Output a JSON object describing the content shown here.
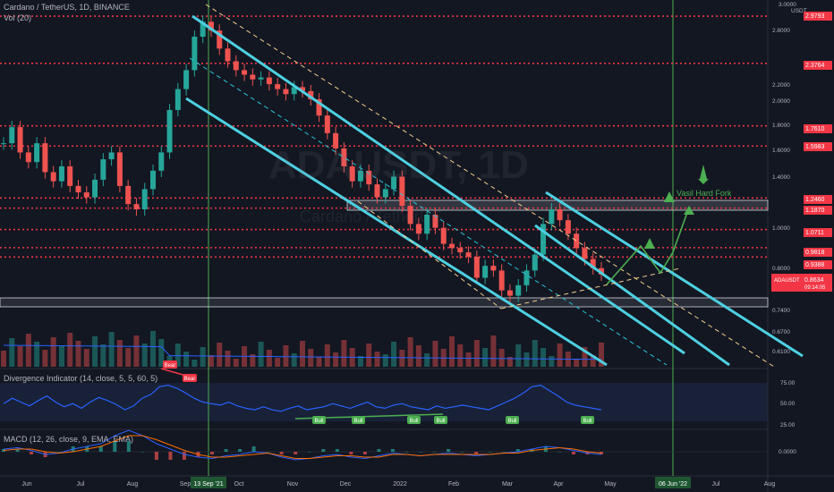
{
  "header": {
    "symbol_line": "Cardano / TetherUS, 1D, BINANCE",
    "volume_label": "Vol (20)",
    "watermark_ticker": "ADAUSDT, 1D",
    "watermark_name": "Cardano / TetherUS"
  },
  "indicators": {
    "divergence_label": "Divergence Indicator (14, close, 5, 5, 60, 5)",
    "macd_label": "MACD (12, 26, close, 9, EMA, EMA)"
  },
  "annotations": {
    "vasil": "Vasil Hard Fork"
  },
  "colors": {
    "background": "#131722",
    "channel": "#4dd0e1",
    "resistance": "#f23645",
    "annotation_green": "#4caf50",
    "rsi_line": "#2962ff",
    "macd_line": "#2962ff",
    "signal_line": "#ff6d00",
    "dashed_upper": "#f5d08a",
    "dashed_lower": "#26c6da"
  },
  "chart_data": {
    "type": "line",
    "price_axis": {
      "scale": "log",
      "unit_label": "USDT",
      "ticks": [
        "3.0000",
        "2.8000",
        "2.2000",
        "2.0000",
        "1.8000",
        "1.6000",
        "1.4000",
        "1.0000",
        "0.8000",
        "0.7400",
        "0.6700",
        "0.6100"
      ]
    },
    "price_labels": [
      {
        "value": "2.9793",
        "color": "#f23645"
      },
      {
        "value": "2.3764",
        "color": "#f23645"
      },
      {
        "value": "1.7610",
        "color": "#f23645"
      },
      {
        "value": "1.5983",
        "color": "#f23645"
      },
      {
        "value": "1.2460",
        "color": "#f23645"
      },
      {
        "value": "1.1870",
        "color": "#f23645"
      },
      {
        "value": "1.0711",
        "color": "#f23645"
      },
      {
        "value": "0.9818",
        "color": "#f23645"
      },
      {
        "value": "0.9388",
        "color": "#f23645"
      },
      {
        "value": "0.8634",
        "color": "#f23645"
      }
    ],
    "last_price": {
      "ticker": "ADAUSDT",
      "value": "0.8634",
      "countdown": "09:14:05"
    },
    "resistance_levels": [
      2.9793,
      2.3764,
      1.761,
      1.5983,
      1.246,
      1.187,
      1.0711,
      0.9818,
      0.9388
    ],
    "x_axis_labels": [
      "Jun",
      "Jul",
      "Aug",
      "Sep",
      "Oct",
      "Nov",
      "Dec",
      "2022",
      "Feb",
      "Mar",
      "Apr",
      "May",
      "Jul",
      "Aug"
    ],
    "highlighted_dates": [
      "13 Sep '21",
      "06 Jun '22"
    ],
    "close_series": [
      1.62,
      1.75,
      1.55,
      1.48,
      1.62,
      1.41,
      1.35,
      1.45,
      1.32,
      1.28,
      1.25,
      1.36,
      1.5,
      1.55,
      1.32,
      1.21,
      1.18,
      1.3,
      1.42,
      1.55,
      1.9,
      2.1,
      2.3,
      2.7,
      2.9,
      2.78,
      2.55,
      2.4,
      2.3,
      2.25,
      2.2,
      2.22,
      2.15,
      2.1,
      2.05,
      2.12,
      2.08,
      2.0,
      1.85,
      1.7,
      1.58,
      1.45,
      1.35,
      1.42,
      1.33,
      1.25,
      1.3,
      1.38,
      1.2,
      1.1,
      1.05,
      1.15,
      1.08,
      1.0,
      0.98,
      0.96,
      0.94,
      0.85,
      0.9,
      0.88,
      0.8,
      0.78,
      0.82,
      0.88,
      0.95,
      1.1,
      1.18,
      1.12,
      1.05,
      0.98,
      0.93,
      0.89,
      0.8634
    ],
    "divergence_indicator": {
      "ylim": [
        25,
        75
      ],
      "ticks": [
        "75.00",
        "50.00",
        "25.00"
      ],
      "values": [
        48,
        55,
        50,
        45,
        52,
        58,
        50,
        44,
        48,
        42,
        50,
        56,
        52,
        47,
        40,
        45,
        55,
        60,
        70,
        72,
        68,
        62,
        55,
        50,
        48,
        46,
        50,
        45,
        42,
        40,
        44,
        40,
        38,
        42,
        45,
        40,
        42,
        44,
        48,
        45,
        42,
        46,
        50,
        44,
        42,
        46,
        48,
        44,
        42,
        40,
        45,
        42,
        44,
        46,
        44,
        42,
        40,
        45,
        50,
        55,
        62,
        70,
        72,
        65,
        58,
        50,
        46,
        44,
        42,
        40
      ],
      "bull_labels": [
        "Bull",
        "Bull",
        "Bull",
        "Bull",
        "Bull",
        "Bull",
        "Bull"
      ],
      "bear_labels": [
        "Bear",
        "Bear"
      ]
    },
    "macd": {
      "tick": "0.0000",
      "macd_values": [
        0.02,
        0.03,
        0.01,
        -0.02,
        -0.01,
        0.02,
        0.04,
        0.06,
        0.12,
        0.16,
        0.12,
        0.06,
        0.02,
        -0.02,
        -0.04,
        -0.05,
        -0.03,
        -0.02,
        0.0,
        -0.01,
        -0.04,
        -0.06,
        -0.05,
        -0.03,
        -0.02,
        -0.04,
        -0.05,
        -0.03,
        -0.01,
        -0.02,
        -0.03,
        -0.02,
        -0.01,
        -0.02,
        -0.03,
        -0.02,
        -0.01,
        0.0,
        0.02,
        0.04,
        0.03,
        0.01,
        -0.01,
        -0.02
      ],
      "signal_values": [
        0.01,
        0.02,
        0.02,
        0.0,
        -0.01,
        0.0,
        0.02,
        0.04,
        0.08,
        0.12,
        0.12,
        0.09,
        0.05,
        0.01,
        -0.02,
        -0.04,
        -0.04,
        -0.03,
        -0.02,
        -0.01,
        -0.03,
        -0.05,
        -0.05,
        -0.04,
        -0.03,
        -0.03,
        -0.04,
        -0.04,
        -0.02,
        -0.02,
        -0.03,
        -0.02,
        -0.02,
        -0.02,
        -0.02,
        -0.02,
        -0.01,
        -0.01,
        0.01,
        0.02,
        0.03,
        0.02,
        0.0,
        -0.01
      ]
    }
  }
}
